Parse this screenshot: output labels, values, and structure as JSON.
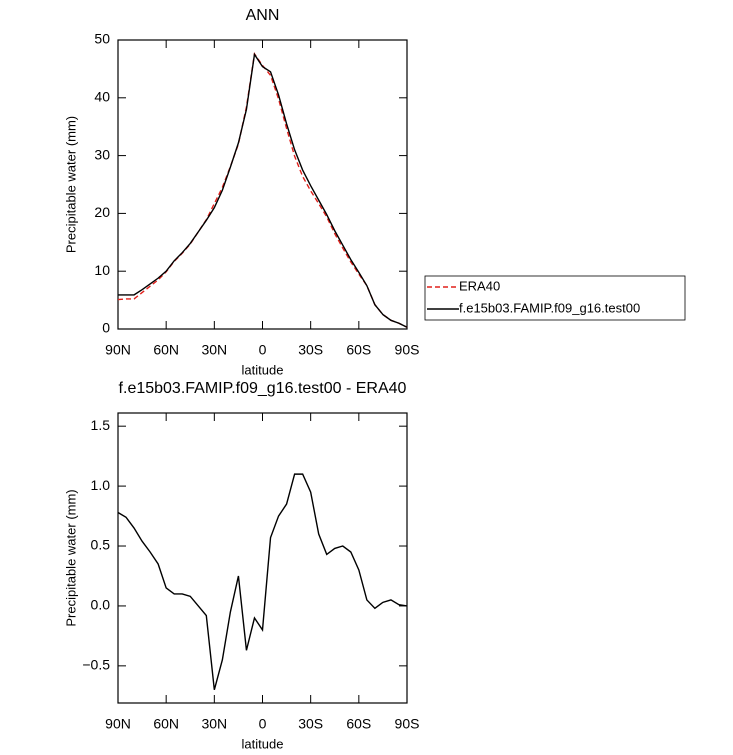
{
  "chart_data": [
    {
      "type": "line",
      "title": "ANN",
      "xlabel": "latitude",
      "ylabel": "Precipitable water (mm)",
      "x": [
        90,
        85,
        80,
        75,
        70,
        65,
        60,
        55,
        50,
        45,
        40,
        35,
        30,
        25,
        20,
        15,
        10,
        5,
        0,
        -5,
        -10,
        -15,
        -20,
        -25,
        -30,
        -35,
        -40,
        -45,
        -50,
        -55,
        -60,
        -65,
        -70,
        -75,
        -80,
        -85,
        -90
      ],
      "series": [
        {
          "name": "ERA40",
          "color": "#e0201b",
          "linestyle": "dashed",
          "values": [
            5.1,
            5.2,
            5.2,
            6.3,
            7.4,
            8.5,
            9.9,
            11.7,
            13.1,
            14.7,
            16.8,
            18.9,
            21.7,
            24.5,
            28.1,
            32.0,
            38.4,
            47.6,
            45.6,
            43.9,
            39.8,
            34.7,
            29.9,
            26.4,
            23.9,
            21.7,
            19.4,
            16.5,
            14.0,
            11.6,
            9.5,
            7.5,
            4.2,
            2.5,
            1.5,
            1.0,
            0.3
          ]
        },
        {
          "name": "f.e15b03.FAMIP.f09_g16.test00",
          "color": "#000000",
          "linestyle": "solid",
          "values": [
            5.9,
            5.9,
            5.9,
            6.8,
            7.8,
            8.8,
            10.0,
            11.8,
            13.2,
            14.8,
            16.8,
            18.8,
            21.0,
            24.0,
            28.0,
            32.2,
            38.0,
            47.5,
            45.4,
            44.5,
            40.5,
            35.5,
            31.0,
            27.5,
            24.8,
            22.3,
            19.8,
            17.0,
            14.5,
            12.0,
            9.8,
            7.5,
            4.2,
            2.5,
            1.5,
            1.0,
            0.3
          ]
        }
      ],
      "xlim": [
        90,
        -90
      ],
      "xticks": [
        {
          "value": 90,
          "label": "90N"
        },
        {
          "value": 60,
          "label": "60N"
        },
        {
          "value": 30,
          "label": "30N"
        },
        0,
        {
          "value": -30,
          "label": "30S"
        },
        {
          "value": -60,
          "label": "60S"
        },
        {
          "value": -90,
          "label": "90S"
        }
      ],
      "ylim": [
        0,
        50
      ],
      "yticks": [
        0,
        10,
        20,
        30,
        40,
        50
      ],
      "legend": "right"
    },
    {
      "type": "line",
      "title": "f.e15b03.FAMIP.f09_g16.test00 - ERA40",
      "xlabel": "latitude",
      "ylabel": "Precipitable water (mm)",
      "x": [
        90,
        85,
        80,
        75,
        70,
        65,
        60,
        55,
        50,
        45,
        40,
        35,
        30,
        25,
        20,
        15,
        10,
        5,
        0,
        -5,
        -10,
        -15,
        -20,
        -25,
        -30,
        -35,
        -40,
        -45,
        -50,
        -55,
        -60,
        -65,
        -70,
        -75,
        -80,
        -85,
        -90
      ],
      "series": [
        {
          "color": "#000000",
          "linestyle": "solid",
          "values": [
            0.78,
            0.74,
            0.65,
            0.54,
            0.45,
            0.35,
            0.15,
            0.1,
            0.1,
            0.08,
            0.0,
            -0.08,
            -0.7,
            -0.45,
            -0.05,
            0.25,
            -0.37,
            -0.1,
            -0.2,
            0.57,
            0.75,
            0.85,
            1.1,
            1.1,
            0.95,
            0.6,
            0.43,
            0.48,
            0.5,
            0.45,
            0.3,
            0.05,
            -0.02,
            0.03,
            0.05,
            0.01,
            0.0
          ]
        }
      ],
      "xlim": [
        90,
        -90
      ],
      "xticks": [
        {
          "value": 90,
          "label": "90N"
        },
        {
          "value": 60,
          "label": "60N"
        },
        {
          "value": 30,
          "label": "30N"
        },
        0,
        {
          "value": -30,
          "label": "30S"
        },
        {
          "value": -60,
          "label": "60S"
        },
        {
          "value": -90,
          "label": "90S"
        }
      ],
      "ylim": [
        -0.81,
        1.61
      ],
      "yticks": [
        {
          "value": -0.5,
          "label": "−0.5"
        },
        {
          "value": 0,
          "label": "0.0"
        },
        0.5,
        {
          "value": 1,
          "label": "1.0"
        },
        1.5
      ]
    }
  ]
}
